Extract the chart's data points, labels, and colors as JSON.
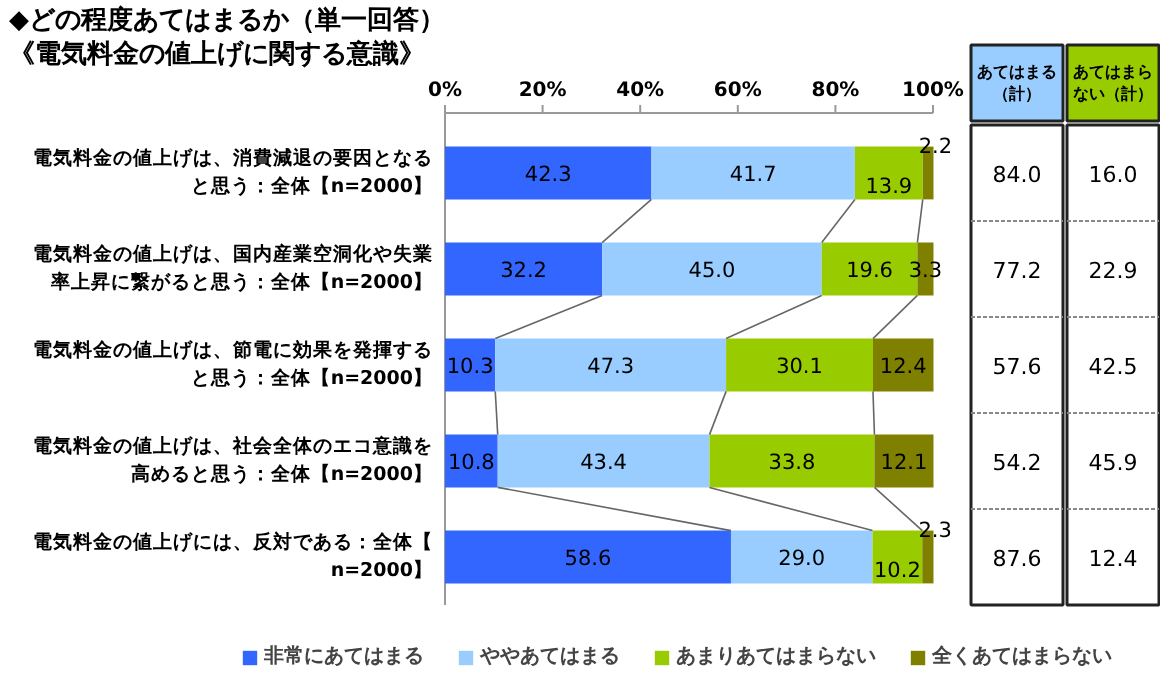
{
  "chart_data": [
    {
      "type": "bar",
      "orientation": "horizontal",
      "stacked": true,
      "title": "◆どの程度あてはまるか（単一回答）",
      "subtitle": "《電気料金の値上げに関する意識》",
      "categories": [
        "電気料金の値上げは、消費減退の要因となると思う：全体【n=2000】",
        "電気料金の値上げは、国内産業空洞化や失業率上昇に繋がると思う：全体【n=2000】",
        "電気料金の値上げは、節電に効果を発揮すると思う：全体【n=2000】",
        "電気料金の値上げは、社会全体のエコ意識を高めると思う：全体【n=2000】",
        "電気料金の値上げには、反対である：全体【n=2000】"
      ],
      "series": [
        {
          "name": "非常にあてはまる",
          "color": "#3366ff",
          "values": [
            42.3,
            32.2,
            10.3,
            10.8,
            58.6
          ],
          "value_labels": [
            "42.3",
            "32.2",
            "10.3",
            "10.8",
            "58.6"
          ]
        },
        {
          "name": "ややあてはまる",
          "color": "#99ccff",
          "values": [
            41.7,
            45.0,
            47.3,
            43.4,
            29.0
          ],
          "value_labels": [
            "41.7",
            "45.0",
            "47.3",
            "43.4",
            "29.0"
          ]
        },
        {
          "name": "あまりあてはまらない",
          "color": "#99cc00",
          "values": [
            13.9,
            19.6,
            30.1,
            33.8,
            10.2
          ],
          "value_labels": [
            "13.9",
            "19.6",
            "30.1",
            "33.8",
            "10.2"
          ]
        },
        {
          "name": "全くあてはまらない",
          "color": "#808000",
          "values": [
            2.2,
            3.3,
            12.4,
            12.1,
            2.3
          ],
          "value_labels": [
            "2.2",
            "3.3",
            "12.4",
            "12.1",
            "2.3"
          ]
        }
      ],
      "xlim": [
        0,
        100
      ],
      "xticks": [
        {
          "value": 0,
          "label": "0%"
        },
        {
          "value": 20,
          "label": "20%"
        },
        {
          "value": 40,
          "label": "40%"
        },
        {
          "value": 60,
          "label": "60%"
        },
        {
          "value": 80,
          "label": "80%"
        },
        {
          "value": 100,
          "label": "100%"
        }
      ],
      "legend": "bottom",
      "grid": false
    },
    {
      "type": "other",
      "categories": [
        "あてはまる（計）",
        "あてはまらない（計）"
      ],
      "colors": [
        "#99ccff",
        "#99cc00"
      ],
      "cell_labels": [
        [
          "84.0",
          "16.0"
        ],
        [
          "77.2",
          "22.9"
        ],
        [
          "57.6",
          "42.5"
        ],
        [
          "54.2",
          "45.9"
        ],
        [
          "87.6",
          "12.4"
        ]
      ]
    }
  ]
}
